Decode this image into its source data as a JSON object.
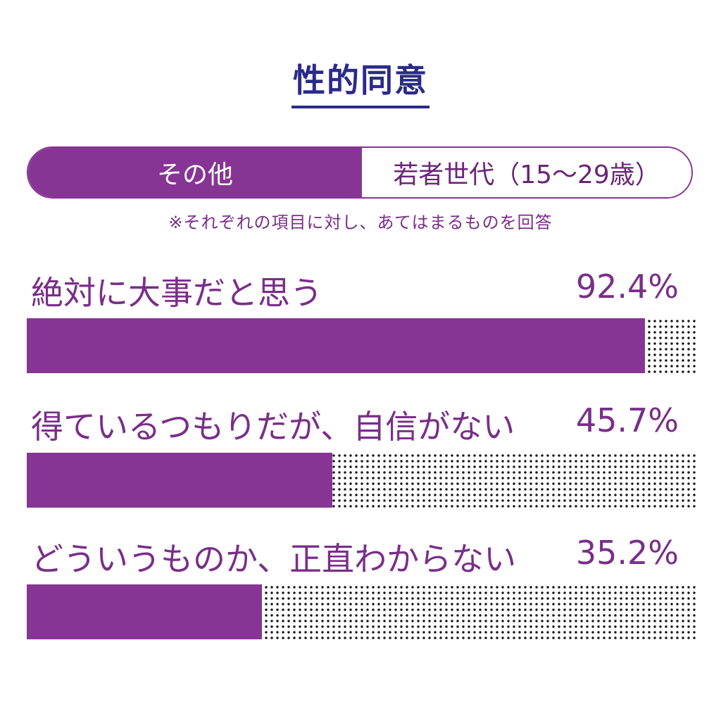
{
  "title": "性的同意",
  "toggle": {
    "left_label": "その他",
    "right_label": "若者世代（15〜29歳）"
  },
  "note": "※それぞれの項目に対し、あてはまるものを回答",
  "colors": {
    "fill": "#873595",
    "title": "#2a2a8c",
    "text": "#7a2e89"
  },
  "chart_data": {
    "type": "bar",
    "orientation": "horizontal",
    "title": "性的同意",
    "categories": [
      "絶対に大事だと思う",
      "得ているつもりだが、自信がない",
      "どういうものか、正直わからない"
    ],
    "values": [
      92.4,
      45.7,
      35.2
    ],
    "value_labels": [
      "92.4%",
      "45.7%",
      "35.2%"
    ],
    "xlim": [
      0,
      100
    ],
    "grid": false
  }
}
